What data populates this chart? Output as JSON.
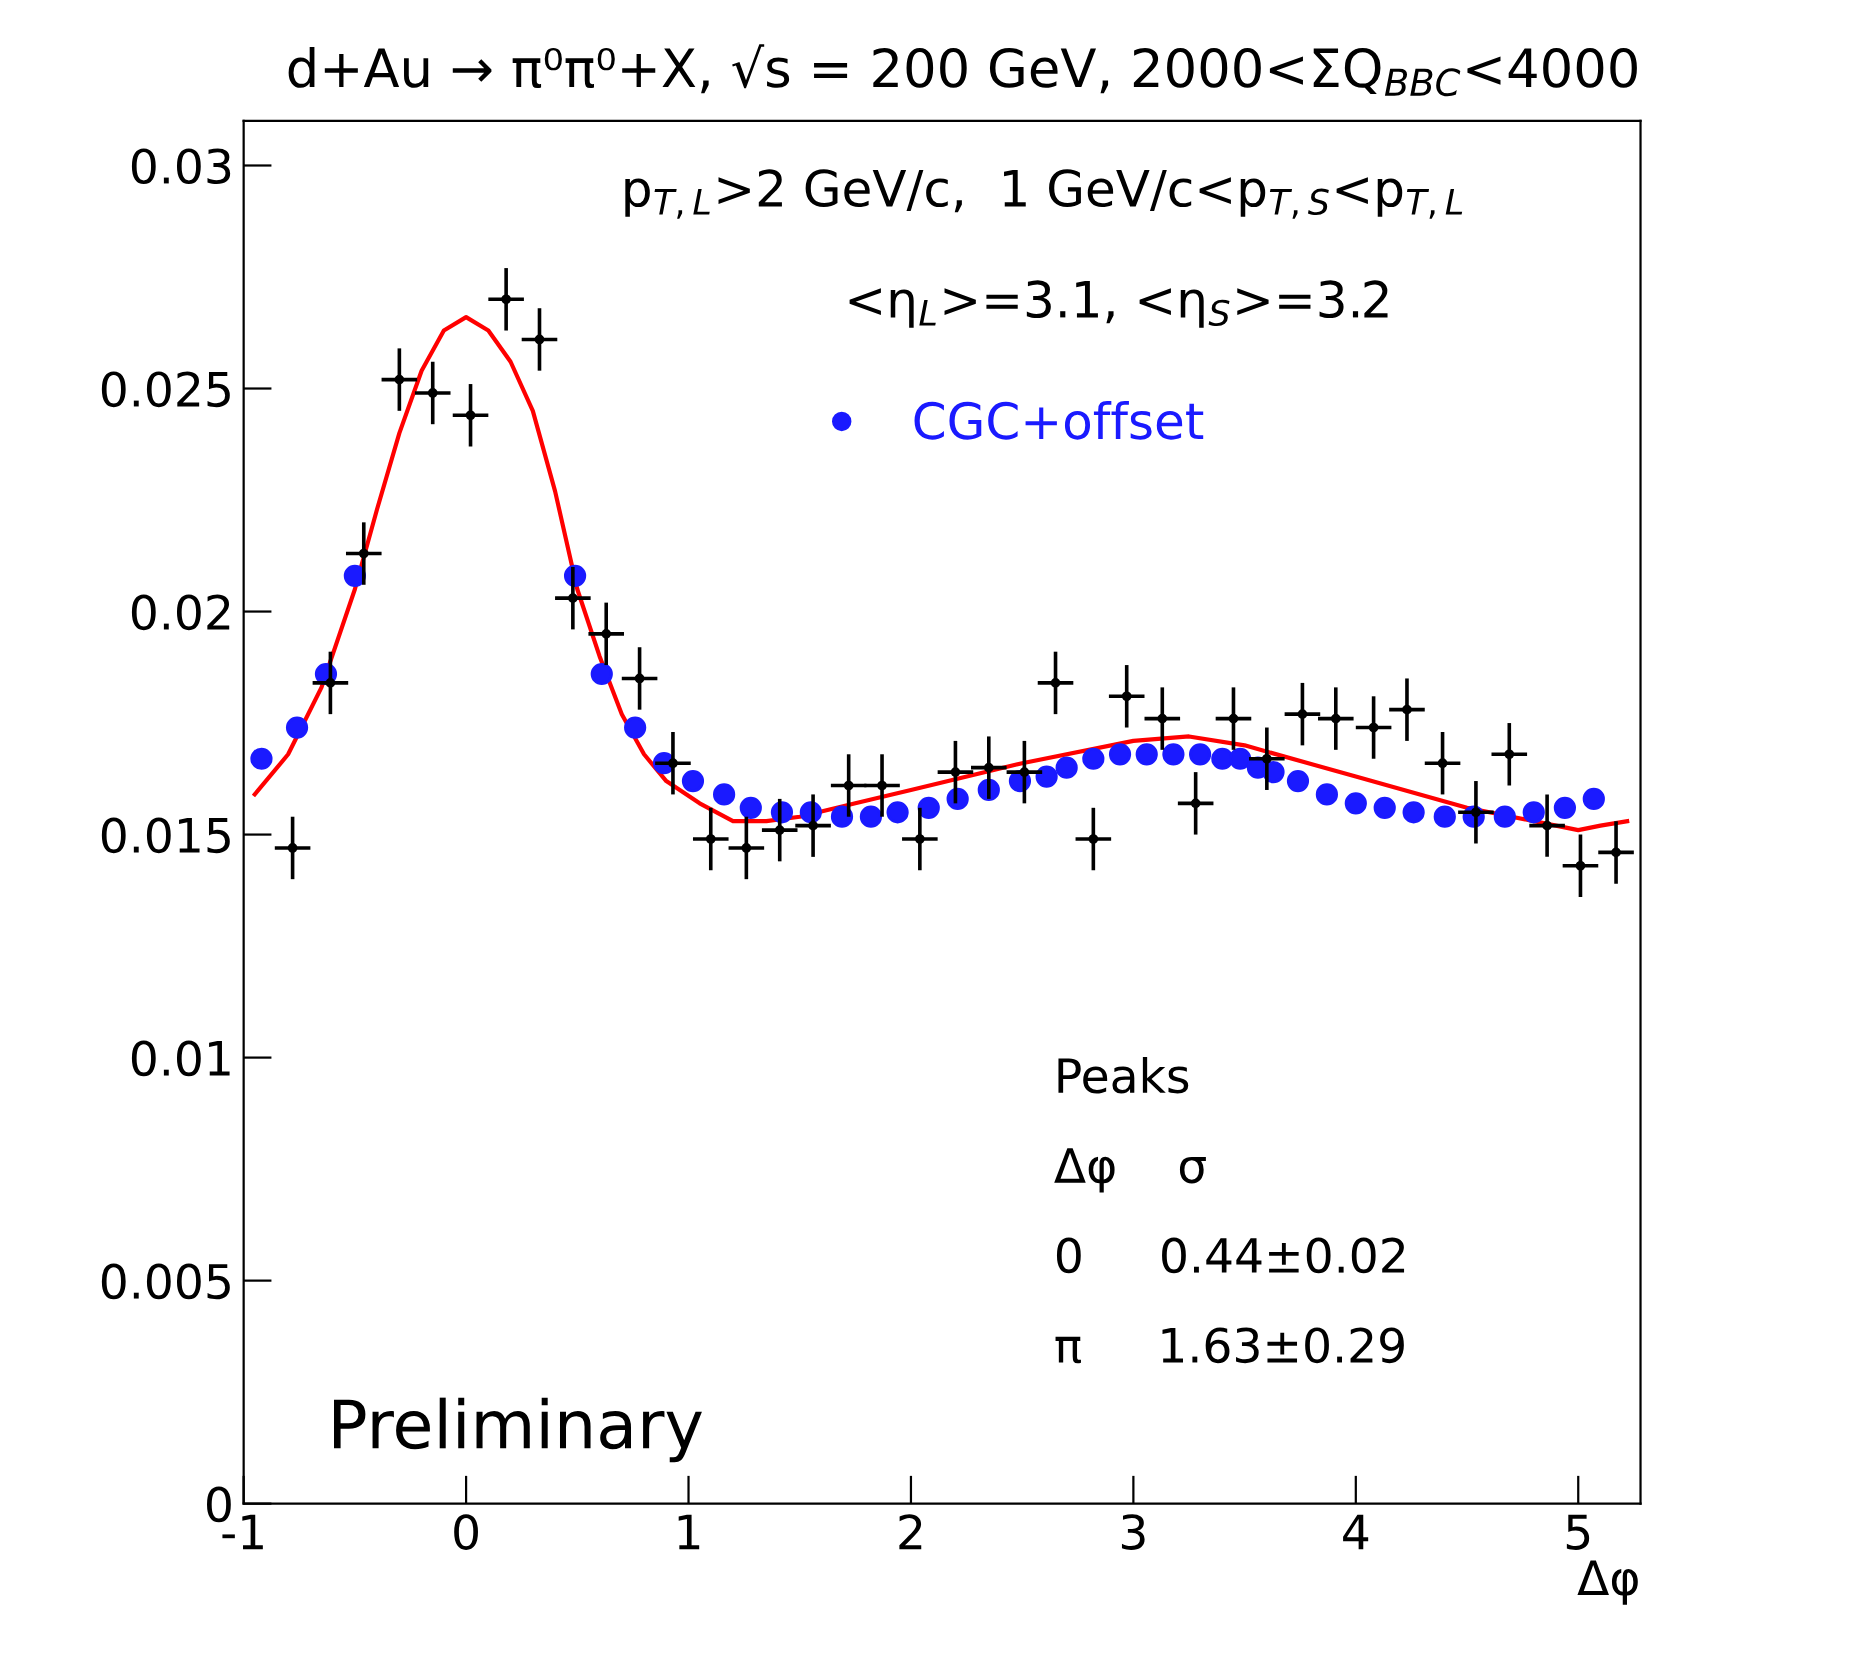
{
  "chart_data": {
    "type": "line",
    "title": "d+Au → π⁰π⁰+X, √s = 200 GeV, 2000<ΣQ$_{BBC}$<4000",
    "xlabel": "Δφ",
    "xlim": [
      -1,
      5.28
    ],
    "ylim": [
      0,
      0.031
    ],
    "xticks": [
      -1,
      0,
      1,
      2,
      3,
      4,
      5
    ],
    "yticks": [
      0,
      {
        "value": 0.005,
        "label": "0.005"
      },
      {
        "value": 0.01,
        "label": "0.01"
      },
      {
        "value": 0.015,
        "label": "0.015"
      },
      {
        "value": 0.02,
        "label": "0.02"
      },
      {
        "value": 0.025,
        "label": "0.025"
      },
      {
        "value": 0.03,
        "label": "0.03"
      }
    ],
    "grid": false,
    "legend": "top right",
    "annotations": [
      "p$_{T,L}$>2 GeV/c,  1 GeV/c<p$_{T,S}$<p$_{T,L}$",
      "<η$_{L}$>=3.1, <η$_{S}$>=3.2",
      "Peaks",
      "Δφ    σ",
      "0     0.44±0.02",
      "π     1.63±0.29",
      "Preliminary"
    ],
    "series": [
      {
        "type": "scatter",
        "color": "#000000",
        "x": [
          -0.78,
          -0.61,
          -0.46,
          -0.3,
          -0.15,
          0.02,
          0.18,
          0.33,
          0.48,
          0.63,
          0.78,
          0.93,
          1.1,
          1.26,
          1.41,
          1.56,
          1.72,
          1.87,
          2.04,
          2.2,
          2.35,
          2.51,
          2.65,
          2.82,
          2.97,
          3.13,
          3.28,
          3.45,
          3.6,
          3.76,
          3.91,
          4.08,
          4.23,
          4.39,
          4.54,
          4.69,
          4.86,
          5.01,
          5.17
        ],
        "values": [
          0.0147,
          0.0184,
          0.0213,
          0.0252,
          0.0249,
          0.0244,
          0.027,
          0.0261,
          0.0203,
          0.0195,
          0.0185,
          0.0166,
          0.0149,
          0.0147,
          0.0151,
          0.0152,
          0.0161,
          0.0161,
          0.0149,
          0.0164,
          0.0165,
          0.0164,
          0.0184,
          0.0149,
          0.0181,
          0.0176,
          0.0157,
          0.0176,
          0.0167,
          0.0177,
          0.0176,
          0.0174,
          0.0178,
          0.0166,
          0.0155,
          0.0168,
          0.0152,
          0.0143,
          0.0146
        ],
        "errors": [
          0.0007,
          0.0007,
          0.0007,
          0.0007,
          0.0007,
          0.0007,
          0.0007,
          0.0007,
          0.0007,
          0.0007,
          0.0007,
          0.0007,
          0.0007,
          0.0007,
          0.0007,
          0.0007,
          0.0007,
          0.0007,
          0.0007,
          0.0007,
          0.0007,
          0.0007,
          0.0007,
          0.0007,
          0.0007,
          0.0007,
          0.0007,
          0.0007,
          0.0007,
          0.0007,
          0.0007,
          0.0007,
          0.0007,
          0.0007,
          0.0007,
          0.0007,
          0.0007,
          0.0007,
          0.0007
        ],
        "xerrors": [
          0.08,
          0.08,
          0.08,
          0.08,
          0.08,
          0.08,
          0.08,
          0.08,
          0.08,
          0.08,
          0.08,
          0.08,
          0.08,
          0.08,
          0.08,
          0.08,
          0.08,
          0.08,
          0.08,
          0.08,
          0.08,
          0.08,
          0.08,
          0.08,
          0.08,
          0.08,
          0.08,
          0.08,
          0.08,
          0.08,
          0.08,
          0.08,
          0.08,
          0.08,
          0.08,
          0.08,
          0.08,
          0.08,
          0.08
        ]
      },
      {
        "color": "#ff0000",
        "marker": "none",
        "line_style": "solid",
        "x": [
          -0.95,
          -0.8,
          -0.65,
          -0.5,
          -0.4,
          -0.3,
          -0.2,
          -0.1,
          0,
          0.1,
          0.2,
          0.3,
          0.4,
          0.5,
          0.6,
          0.7,
          0.8,
          0.9,
          1.05,
          1.2,
          1.35,
          1.5,
          1.75,
          2,
          2.5,
          3,
          3.25,
          3.5,
          4,
          4.5,
          4.9,
          5.0,
          5.1,
          5.22
        ],
        "values": [
          0.0159,
          0.0168,
          0.0183,
          0.0205,
          0.0223,
          0.024,
          0.0254,
          0.0263,
          0.0266,
          0.0263,
          0.0256,
          0.0245,
          0.0227,
          0.0205,
          0.019,
          0.0177,
          0.0168,
          0.0162,
          0.0157,
          0.0153,
          0.0153,
          0.0154,
          0.0157,
          0.016,
          0.0166,
          0.0171,
          0.0172,
          0.017,
          0.0163,
          0.0156,
          0.0152,
          0.0151,
          0.0152,
          0.0153
        ]
      },
      {
        "type": "scatter",
        "name": "CGC+offset",
        "color": "#1a1aff",
        "marker": "circle",
        "x": [
          -0.92,
          -0.76,
          -0.63,
          -0.5,
          0.49,
          0.61,
          0.76,
          0.89,
          1.02,
          1.16,
          1.28,
          1.42,
          1.55,
          1.69,
          1.82,
          1.94,
          2.08,
          2.21,
          2.35,
          2.49,
          2.61,
          2.7,
          2.82,
          2.94,
          3.06,
          3.18,
          3.3,
          3.4,
          3.48,
          3.56,
          3.63,
          3.74,
          3.87,
          4.0,
          4.13,
          4.26,
          4.4,
          4.53,
          4.67,
          4.8,
          4.94,
          5.07
        ],
        "values": [
          0.0167,
          0.0174,
          0.0186,
          0.0208,
          0.0208,
          0.0186,
          0.0174,
          0.0166,
          0.0162,
          0.0159,
          0.0156,
          0.0155,
          0.0155,
          0.0154,
          0.0154,
          0.0155,
          0.0156,
          0.0158,
          0.016,
          0.0162,
          0.0163,
          0.0165,
          0.0167,
          0.0168,
          0.0168,
          0.0168,
          0.0168,
          0.0167,
          0.0167,
          0.0165,
          0.0164,
          0.0162,
          0.0159,
          0.0157,
          0.0156,
          0.0155,
          0.0154,
          0.0154,
          0.0154,
          0.0155,
          0.0156,
          0.0158
        ]
      }
    ]
  }
}
